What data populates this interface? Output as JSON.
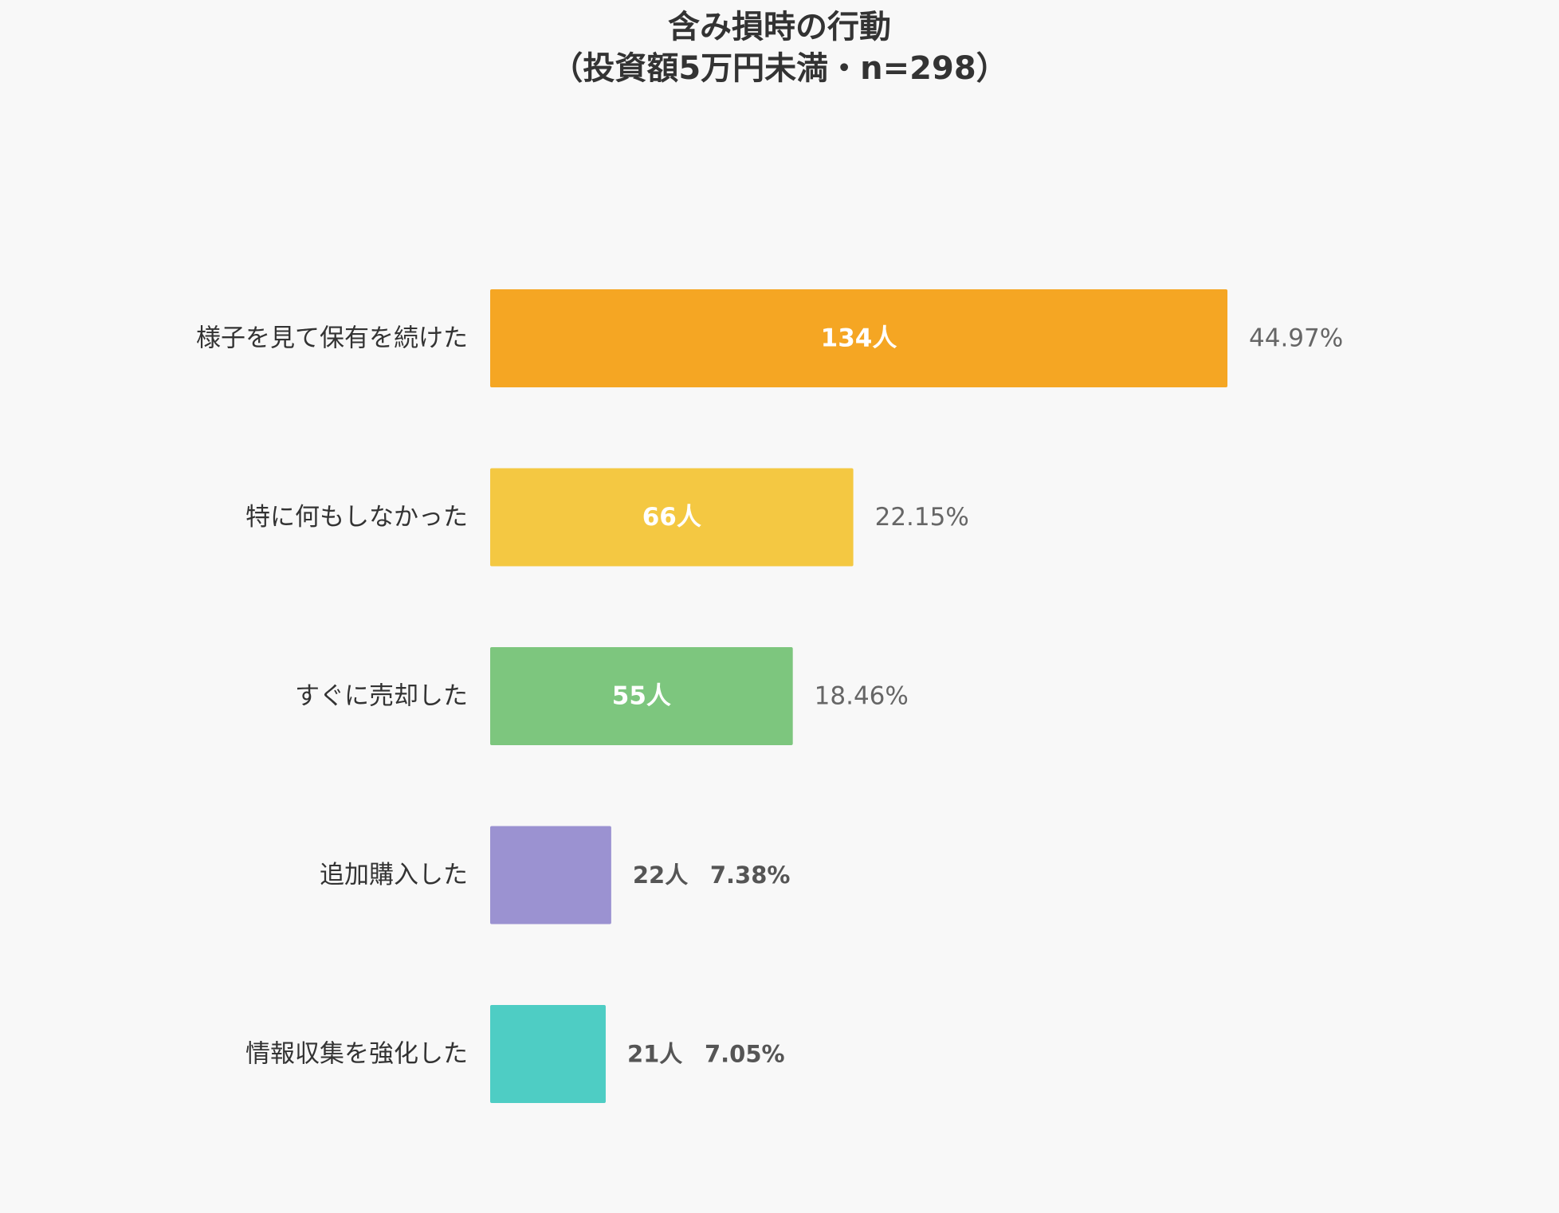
{
  "chart_data": {
    "type": "bar",
    "orientation": "horizontal",
    "title_lines": [
      "含み損時の行動",
      "（投資額5万円未満・n=298）"
    ],
    "categories": [
      "様子を見て保有を続けた",
      "特に何もしなかった",
      "すぐに売却した",
      "追加購入した",
      "情報収集を強化した"
    ],
    "values": [
      134,
      66,
      55,
      22,
      21
    ],
    "value_labels": [
      "134人",
      "66人",
      "55人",
      "22人",
      "21人"
    ],
    "percent_labels": [
      "44.97%",
      "22.15%",
      "18.46%",
      "7.38%",
      "7.05%"
    ],
    "colors": [
      "#f5a623",
      "#f4c842",
      "#7dc67e",
      "#9b92d1",
      "#4ecdc4"
    ],
    "xlim": [
      0,
      134
    ],
    "grid": false,
    "legend": "none"
  }
}
